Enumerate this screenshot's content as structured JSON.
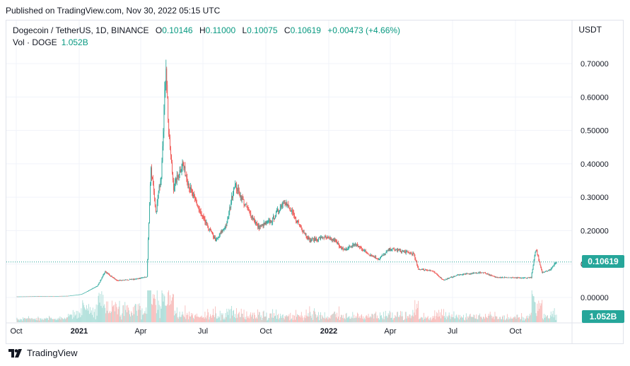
{
  "header": {
    "published": "Published on TradingView.com, Nov 30, 2022 05:15 UTC"
  },
  "legend": {
    "symbol": "Dogecoin / TetherUS, 1D, BINANCE",
    "open_label": "O",
    "open": "0.10146",
    "high_label": "H",
    "high": "0.11000",
    "low_label": "L",
    "low": "0.10075",
    "close_label": "C",
    "close": "0.10619",
    "change": "+0.00473 (+4.66%)",
    "volume_label": "Vol · DOGE",
    "volume": "1.052B"
  },
  "currency": "USDT",
  "last_price_tag": "0.10619",
  "last_volume_tag": "1.052B",
  "brand": {
    "name": "TradingView",
    "icon": "tradingview-logo-icon"
  },
  "colors": {
    "up": "#26a69a",
    "down": "#ef5350",
    "up_text": "#089981",
    "volume_up": "#a5dbd5",
    "volume_down": "#f7b5b3",
    "grid": "#f0f3fa"
  },
  "chart_data": {
    "type": "line",
    "style": "candlestick",
    "x_axis": {
      "range": [
        "2020-10-01",
        "2022-11-30"
      ],
      "ticks": [
        {
          "date": "2020-10-01",
          "label": "Oct"
        },
        {
          "date": "2021-01-01",
          "label": "2021"
        },
        {
          "date": "2021-04-01",
          "label": "Apr"
        },
        {
          "date": "2021-07-01",
          "label": "Jul"
        },
        {
          "date": "2021-10-01",
          "label": "Oct"
        },
        {
          "date": "2022-01-01",
          "label": "2022"
        },
        {
          "date": "2022-04-01",
          "label": "Apr"
        },
        {
          "date": "2022-07-01",
          "label": "Jul"
        },
        {
          "date": "2022-10-01",
          "label": "Oct"
        }
      ]
    },
    "y_axis": {
      "position": "right",
      "range": [
        -0.04,
        0.78
      ],
      "ticks": [
        "0.00000",
        "0.10000",
        "0.20000",
        "0.30000",
        "0.40000",
        "0.50000",
        "0.60000",
        "0.70000"
      ]
    },
    "grid": true,
    "last_close": 0.10619,
    "series": [
      {
        "type": "line",
        "values_approx": [
          [
            "2020-10-01",
            0.0027
          ],
          [
            "2020-12-15",
            0.0045
          ],
          [
            "2021-01-05",
            0.0098
          ],
          [
            "2021-01-28",
            0.035
          ],
          [
            "2021-02-08",
            0.078
          ],
          [
            "2021-02-25",
            0.05
          ],
          [
            "2021-03-25",
            0.055
          ],
          [
            "2021-04-10",
            0.062
          ],
          [
            "2021-04-16",
            0.39
          ],
          [
            "2021-04-23",
            0.25
          ],
          [
            "2021-05-01",
            0.37
          ],
          [
            "2021-05-08",
            0.7
          ],
          [
            "2021-05-12",
            0.49
          ],
          [
            "2021-05-19",
            0.33
          ],
          [
            "2021-06-01",
            0.4
          ],
          [
            "2021-06-15",
            0.31
          ],
          [
            "2021-06-30",
            0.24
          ],
          [
            "2021-07-20",
            0.17
          ],
          [
            "2021-08-05",
            0.22
          ],
          [
            "2021-08-16",
            0.34
          ],
          [
            "2021-08-31",
            0.28
          ],
          [
            "2021-09-20",
            0.21
          ],
          [
            "2021-10-10",
            0.23
          ],
          [
            "2021-10-28",
            0.29
          ],
          [
            "2021-11-15",
            0.23
          ],
          [
            "2021-12-04",
            0.17
          ],
          [
            "2021-12-25",
            0.18
          ],
          [
            "2022-01-10",
            0.17
          ],
          [
            "2022-01-23",
            0.14
          ],
          [
            "2022-02-08",
            0.16
          ],
          [
            "2022-03-01",
            0.13
          ],
          [
            "2022-03-15",
            0.115
          ],
          [
            "2022-04-01",
            0.145
          ],
          [
            "2022-04-15",
            0.14
          ],
          [
            "2022-05-05",
            0.13
          ],
          [
            "2022-05-12",
            0.085
          ],
          [
            "2022-06-01",
            0.08
          ],
          [
            "2022-06-18",
            0.052
          ],
          [
            "2022-07-10",
            0.068
          ],
          [
            "2022-08-15",
            0.075
          ],
          [
            "2022-09-01",
            0.061
          ],
          [
            "2022-10-10",
            0.058
          ],
          [
            "2022-10-24",
            0.06
          ],
          [
            "2022-10-31",
            0.145
          ],
          [
            "2022-11-09",
            0.075
          ],
          [
            "2022-11-20",
            0.082
          ],
          [
            "2022-11-30",
            0.10619
          ]
        ]
      }
    ]
  }
}
